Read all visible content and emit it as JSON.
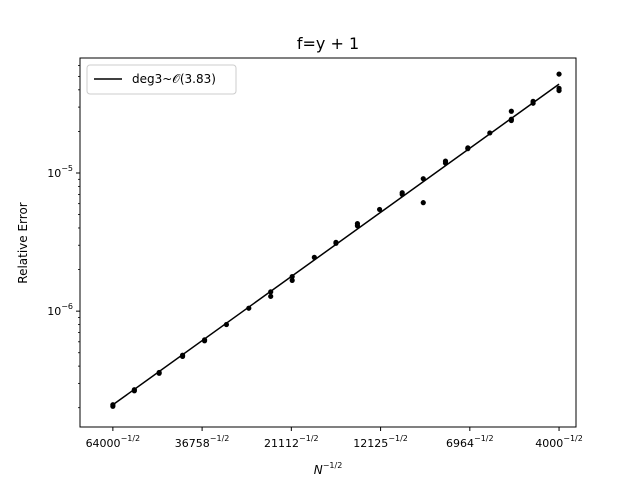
{
  "chart_data": {
    "type": "scatter",
    "title": "f=y + 1",
    "xlabel_base": "N",
    "xlabel_exp": "−1/2",
    "ylabel": "Relative Error",
    "xscale": "log",
    "yscale": "log",
    "x_axis_quantity": "N^(-1/2)",
    "xlim_N": [
      78500,
      3600
    ],
    "ylim": [
      1.45e-07,
      6.8e-05
    ],
    "x_ticks": [
      {
        "N": 64000,
        "base": "64000",
        "exp": "−1/2"
      },
      {
        "N": 36758,
        "base": "36758",
        "exp": "−1/2"
      },
      {
        "N": 21112,
        "base": "21112",
        "exp": "−1/2"
      },
      {
        "N": 12125,
        "base": "12125",
        "exp": "−1/2"
      },
      {
        "N": 6964,
        "base": "6964",
        "exp": "−1/2"
      },
      {
        "N": 4000,
        "base": "4000",
        "exp": "−1/2"
      }
    ],
    "y_ticks": [
      {
        "value": 1e-05,
        "base": "10",
        "exp": "−5"
      },
      {
        "value": 1e-06,
        "base": "10",
        "exp": "−6"
      }
    ],
    "grid": false,
    "legend": {
      "placement": "top-left",
      "label": "deg3~𝒪(3.83)"
    },
    "fit_line": {
      "name": "deg3~𝒪(3.83)",
      "color": "#000000",
      "N": [
        64000,
        4000
      ],
      "y": [
        2.1e-07,
        4.4e-05
      ]
    },
    "points_series": {
      "color": "#000000",
      "points": [
        {
          "N": 64000,
          "y": 2.1e-07
        },
        {
          "N": 64000,
          "y": 2.05e-07
        },
        {
          "N": 56000,
          "y": 2.7e-07
        },
        {
          "N": 56000,
          "y": 2.65e-07
        },
        {
          "N": 48000,
          "y": 3.6e-07
        },
        {
          "N": 48000,
          "y": 3.55e-07
        },
        {
          "N": 41500,
          "y": 4.8e-07
        },
        {
          "N": 41500,
          "y": 4.7e-07
        },
        {
          "N": 36200,
          "y": 6.2e-07
        },
        {
          "N": 36200,
          "y": 6.1e-07
        },
        {
          "N": 31600,
          "y": 8e-07
        },
        {
          "N": 27500,
          "y": 1.05e-06
        },
        {
          "N": 24000,
          "y": 1.38e-06
        },
        {
          "N": 24000,
          "y": 1.28e-06
        },
        {
          "N": 21000,
          "y": 1.78e-06
        },
        {
          "N": 21000,
          "y": 1.67e-06
        },
        {
          "N": 18300,
          "y": 2.45e-06
        },
        {
          "N": 16000,
          "y": 3.15e-06
        },
        {
          "N": 16000,
          "y": 3.1e-06
        },
        {
          "N": 14000,
          "y": 4.3e-06
        },
        {
          "N": 14000,
          "y": 4.15e-06
        },
        {
          "N": 12200,
          "y": 5.45e-06
        },
        {
          "N": 10600,
          "y": 7.2e-06
        },
        {
          "N": 10600,
          "y": 7e-06
        },
        {
          "N": 9300,
          "y": 9.1e-06
        },
        {
          "N": 9300,
          "y": 6.1e-06
        },
        {
          "N": 8100,
          "y": 1.22e-05
        },
        {
          "N": 8100,
          "y": 1.18e-05
        },
        {
          "N": 7050,
          "y": 1.52e-05
        },
        {
          "N": 7050,
          "y": 1.5e-05
        },
        {
          "N": 6150,
          "y": 1.95e-05
        },
        {
          "N": 5380,
          "y": 2.8e-05
        },
        {
          "N": 5380,
          "y": 2.4e-05
        },
        {
          "N": 5380,
          "y": 2.45e-05
        },
        {
          "N": 4700,
          "y": 3.3e-05
        },
        {
          "N": 4700,
          "y": 3.2e-05
        },
        {
          "N": 4000,
          "y": 5.2e-05
        },
        {
          "N": 4000,
          "y": 4.1e-05
        },
        {
          "N": 4000,
          "y": 3.95e-05
        }
      ]
    }
  }
}
